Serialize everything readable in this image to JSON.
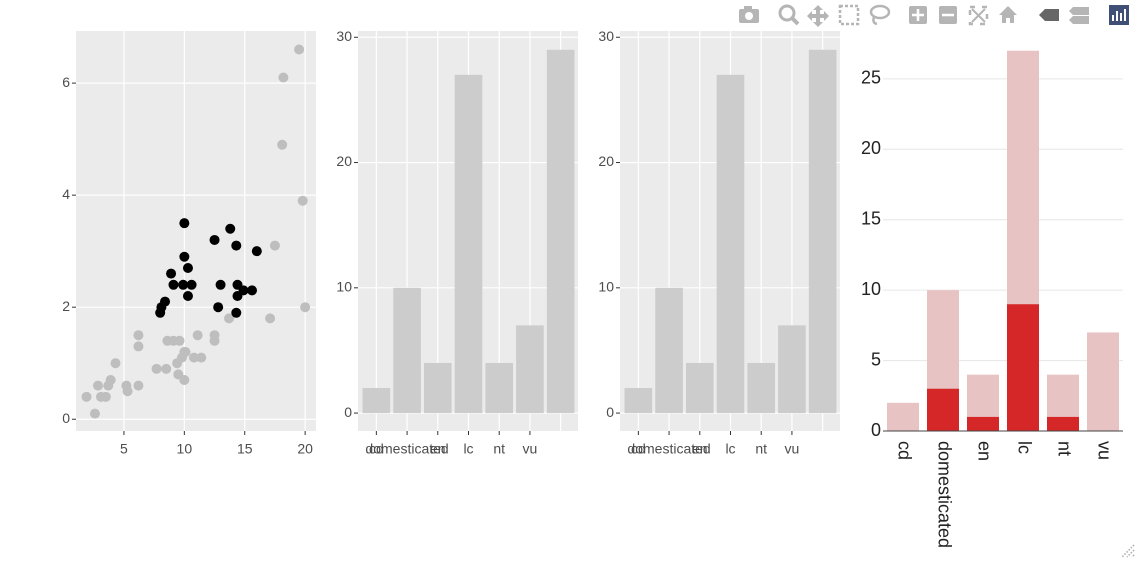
{
  "chart_data": [
    {
      "type": "scatter",
      "xlim": [
        1.03,
        20.9
      ],
      "xticks": [
        5,
        10,
        15,
        20
      ],
      "ylim": [
        -0.21,
        6.93
      ],
      "yticks": [
        0,
        2,
        4,
        6
      ],
      "grid": true,
      "series": [
        {
          "color": "#bebebe",
          "x": [
            1.9,
            2.6,
            2.85,
            3.1,
            3.5,
            3.7,
            3.9,
            4.3,
            5.2,
            5.3,
            6.2,
            6.2,
            6.2,
            7.7,
            8.5,
            8.6,
            9.1,
            9.6,
            9.8,
            9.4,
            9.5,
            10.0,
            10.1,
            10.0,
            10.8,
            11.1,
            11.4,
            12.5,
            12.5,
            13.7,
            17.1,
            17.5,
            18.1,
            18.2,
            19.5,
            19.8,
            20.0
          ],
          "y": [
            0.4,
            0.1,
            0.6,
            0.4,
            0.4,
            0.6,
            0.7,
            1.0,
            0.6,
            0.5,
            0.6,
            1.5,
            1.3,
            0.9,
            0.9,
            1.4,
            1.4,
            1.4,
            1.1,
            1.0,
            0.8,
            1.2,
            1.2,
            0.7,
            1.1,
            1.5,
            1.1,
            1.5,
            1.4,
            1.8,
            1.8,
            3.1,
            4.9,
            6.1,
            6.6,
            3.9,
            2.0
          ]
        },
        {
          "color": "#000000",
          "x": [
            10.0,
            13.8,
            12.5,
            14.3,
            16.0,
            10.0,
            10.3,
            8.9,
            9.1,
            9.9,
            10.6,
            13.0,
            14.4,
            14.9,
            15.6,
            14.4,
            10.3,
            8.4,
            8.1,
            8.0,
            12.8,
            14.3
          ],
          "y": [
            3.5,
            3.4,
            3.2,
            3.1,
            3.0,
            2.9,
            2.7,
            2.6,
            2.4,
            2.4,
            2.4,
            2.4,
            2.4,
            2.3,
            2.3,
            2.2,
            2.2,
            2.1,
            2.0,
            1.9,
            2.0,
            1.9
          ]
        }
      ]
    },
    {
      "type": "bar",
      "categories": [
        "cd",
        "domesticated",
        "en",
        "lc",
        "nt",
        "vu",
        null
      ],
      "values": [
        2,
        10,
        4,
        27,
        4,
        7,
        29
      ],
      "color": "#cccccc",
      "ylim": [
        -1.43,
        30.5
      ],
      "yticks": [
        0,
        10,
        20,
        30
      ],
      "grid": true
    },
    {
      "type": "bar",
      "categories": [
        "cd",
        "domesticated",
        "en",
        "lc",
        "nt",
        "vu",
        null
      ],
      "values": [
        2,
        10,
        4,
        27,
        4,
        7,
        29
      ],
      "color": "#cccccc",
      "ylim": [
        -1.43,
        30.5
      ],
      "yticks": [
        0,
        10,
        20,
        30
      ],
      "grid": true
    },
    {
      "type": "bar",
      "barmode": "overlay",
      "categories": [
        "cd",
        "domesticated",
        "en",
        "lc",
        "nt",
        "vu"
      ],
      "series": [
        {
          "color": "#e8c3c3",
          "values": [
            2,
            10,
            4,
            27,
            4,
            7
          ]
        },
        {
          "color": "#d62728",
          "values": [
            0,
            3,
            1,
            9,
            1,
            0
          ]
        }
      ],
      "ylim": [
        0,
        28.4
      ],
      "yticks": [
        0,
        5,
        10,
        15,
        20,
        25
      ],
      "grid": true
    }
  ]
}
